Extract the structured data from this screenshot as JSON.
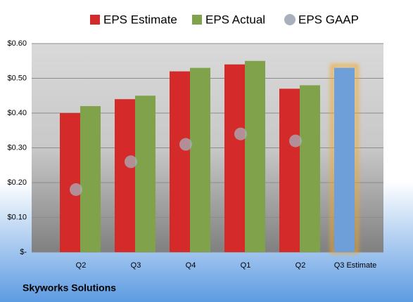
{
  "chart_data": {
    "type": "bar",
    "footer": "Skyworks Solutions",
    "categories": [
      "Q2",
      "Q3",
      "Q4",
      "Q1",
      "Q2",
      "Q3 Estimate"
    ],
    "series": [
      {
        "name": "EPS Estimate",
        "color": "#d42a2a",
        "point_colors": [
          "#d42a2a",
          "#d42a2a",
          "#d42a2a",
          "#d42a2a",
          "#d42a2a",
          "#6f9fd8"
        ],
        "values": [
          0.4,
          0.44,
          0.52,
          0.54,
          0.47,
          0.53
        ]
      },
      {
        "name": "EPS Actual",
        "color": "#7fa24a",
        "values": [
          0.42,
          0.45,
          0.53,
          0.55,
          0.48,
          null
        ]
      },
      {
        "name": "EPS GAAP",
        "color": "#a8b0bb",
        "marker": "circle",
        "values": [
          0.18,
          0.26,
          0.31,
          0.34,
          0.32,
          null
        ]
      }
    ],
    "ylim": [
      0,
      0.6
    ],
    "yticks": [
      {
        "value": 0,
        "label": "$-"
      },
      {
        "value": 0.1,
        "label": "$0.10"
      },
      {
        "value": 0.2,
        "label": "$0.20"
      },
      {
        "value": 0.3,
        "label": "$0.30"
      },
      {
        "value": 0.4,
        "label": "$0.40"
      },
      {
        "value": 0.5,
        "label": "$0.50"
      },
      {
        "value": 0.6,
        "label": "$0.60"
      }
    ],
    "grid": true,
    "legend": "top"
  }
}
